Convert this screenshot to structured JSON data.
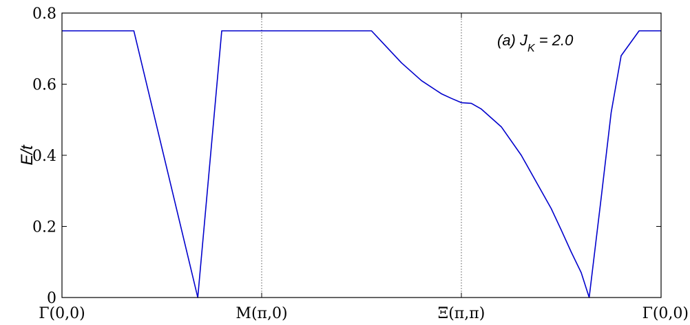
{
  "chart_data": {
    "type": "line",
    "ylabel": "E/t",
    "xlabel": "",
    "annotation": {
      "prefix": "(a) J",
      "subscript": "K",
      "suffix": " = 2.0"
    },
    "ylim": [
      0,
      0.8
    ],
    "yticks": [
      0,
      0.2,
      0.4,
      0.6,
      0.8
    ],
    "ytick_labels": [
      "0",
      "0.2",
      "0.4",
      "0.6",
      "0.8"
    ],
    "xlim": [
      0,
      3
    ],
    "xticks": [
      0,
      1,
      2,
      3
    ],
    "xtick_labels": [
      "Γ(0,0)",
      "M(π,0)",
      "Ξ(π,π)",
      "Γ(0,0)"
    ],
    "vlines": [
      1,
      2
    ],
    "grid": false,
    "series": [
      {
        "color": "#0000cc",
        "x": [
          0,
          0.36,
          0.68,
          0.8,
          1.0,
          1.55,
          1.6,
          1.7,
          1.8,
          1.9,
          1.95,
          2.0,
          2.05,
          2.1,
          2.2,
          2.3,
          2.4,
          2.45,
          2.5,
          2.55,
          2.6,
          2.64,
          2.7,
          2.75,
          2.8,
          2.89,
          3.0
        ],
        "y": [
          0.75,
          0.75,
          0.0,
          0.75,
          0.75,
          0.75,
          0.72,
          0.66,
          0.61,
          0.573,
          0.56,
          0.548,
          0.546,
          0.53,
          0.48,
          0.4,
          0.3,
          0.25,
          0.19,
          0.128,
          0.07,
          0.0,
          0.28,
          0.52,
          0.68,
          0.75,
          0.75
        ]
      }
    ]
  }
}
